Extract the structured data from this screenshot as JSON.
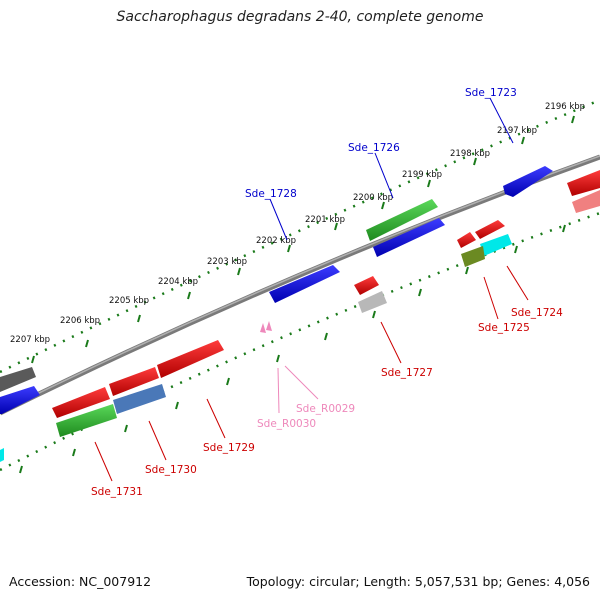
{
  "title": "Saccharophagus degradans 2-40, complete genome",
  "footer": {
    "accession": "Accession: NC_007912",
    "summary": "Topology: circular; Length: 5,057,531 bp; Genes: 4,056"
  },
  "ruler": {
    "ticks": [
      {
        "label": "2196 kbp"
      },
      {
        "label": "2197 kbp"
      },
      {
        "label": "2198 kbp"
      },
      {
        "label": "2199 kbp"
      },
      {
        "label": "2200 kbp"
      },
      {
        "label": "2201 kbp"
      },
      {
        "label": "2202 kbp"
      },
      {
        "label": "2203 kbp"
      },
      {
        "label": "2204 kbp"
      },
      {
        "label": "2205 kbp"
      },
      {
        "label": "2206 kbp"
      },
      {
        "label": "2207 kbp"
      }
    ]
  },
  "gene_labels": [
    {
      "name": "Sde_1723",
      "color": "#0000cc"
    },
    {
      "name": "Sde_1726",
      "color": "#0000cc"
    },
    {
      "name": "Sde_1728",
      "color": "#0000cc"
    },
    {
      "name": "Sde_1724",
      "color": "#cc0000"
    },
    {
      "name": "Sde_1725",
      "color": "#cc0000"
    },
    {
      "name": "Sde_1727",
      "color": "#cc0000"
    },
    {
      "name": "Sde_1729",
      "color": "#cc0000"
    },
    {
      "name": "Sde_1730",
      "color": "#cc0000"
    },
    {
      "name": "Sde_1731",
      "color": "#cc0000"
    },
    {
      "name": "Sde_R0029",
      "color": "#ee88bb"
    },
    {
      "name": "Sde_R0030",
      "color": "#ee88bb"
    }
  ],
  "colors": {
    "backbone": "#808080",
    "ruler_dots": "#1a7a1a",
    "forward_gene": "#0000ee",
    "reverse_gene": "#ee0000"
  }
}
